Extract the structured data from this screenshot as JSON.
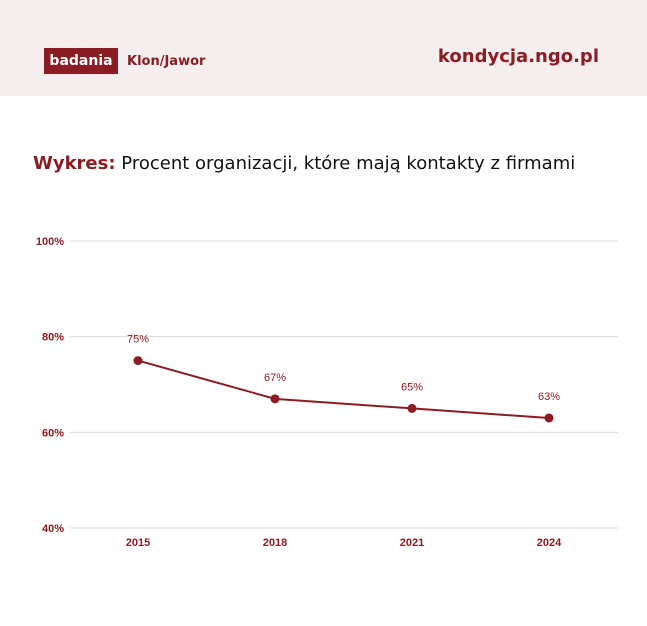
{
  "header": {
    "badge": "badania",
    "brand": "Klon/Jawor",
    "url": "kondycja.ngo.pl"
  },
  "title": {
    "prefix": "Wykres:",
    "text": "Procent organizacji, które mają kontakty z firmami"
  },
  "colors": {
    "accent": "#8b1c23",
    "grid": "#d9d9d9",
    "header_bg": "#f4efee"
  },
  "chart_data": {
    "type": "line",
    "categories": [
      "2015",
      "2018",
      "2021",
      "2024"
    ],
    "series": [
      {
        "values": [
          75,
          67,
          65,
          63
        ]
      }
    ],
    "data_labels": [
      "75%",
      "67%",
      "65%",
      "63%"
    ],
    "yticks": [
      40,
      60,
      80,
      100
    ],
    "ytick_labels": [
      "40%",
      "60%",
      "80%",
      "100%"
    ],
    "ylim": [
      40,
      100
    ],
    "grid": true,
    "legend": "none"
  }
}
